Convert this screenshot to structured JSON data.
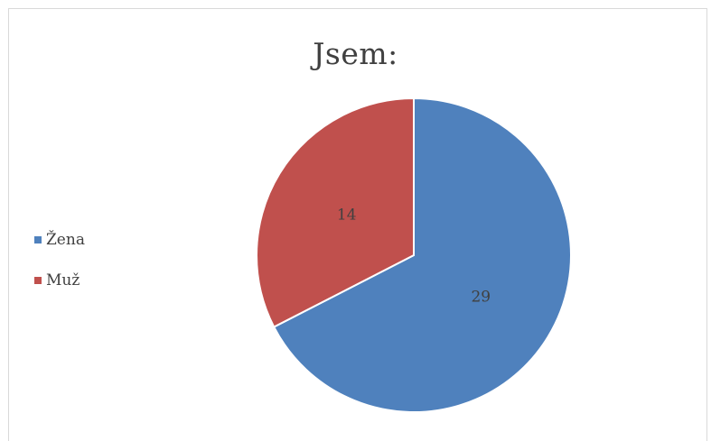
{
  "chart_data": {
    "type": "pie",
    "title": "Jsem:",
    "categories": [
      "Žena",
      "Muž"
    ],
    "values": [
      29,
      14
    ],
    "colors": [
      "#4f81bd",
      "#c0504d"
    ],
    "legend_position": "left",
    "data_labels": true
  }
}
